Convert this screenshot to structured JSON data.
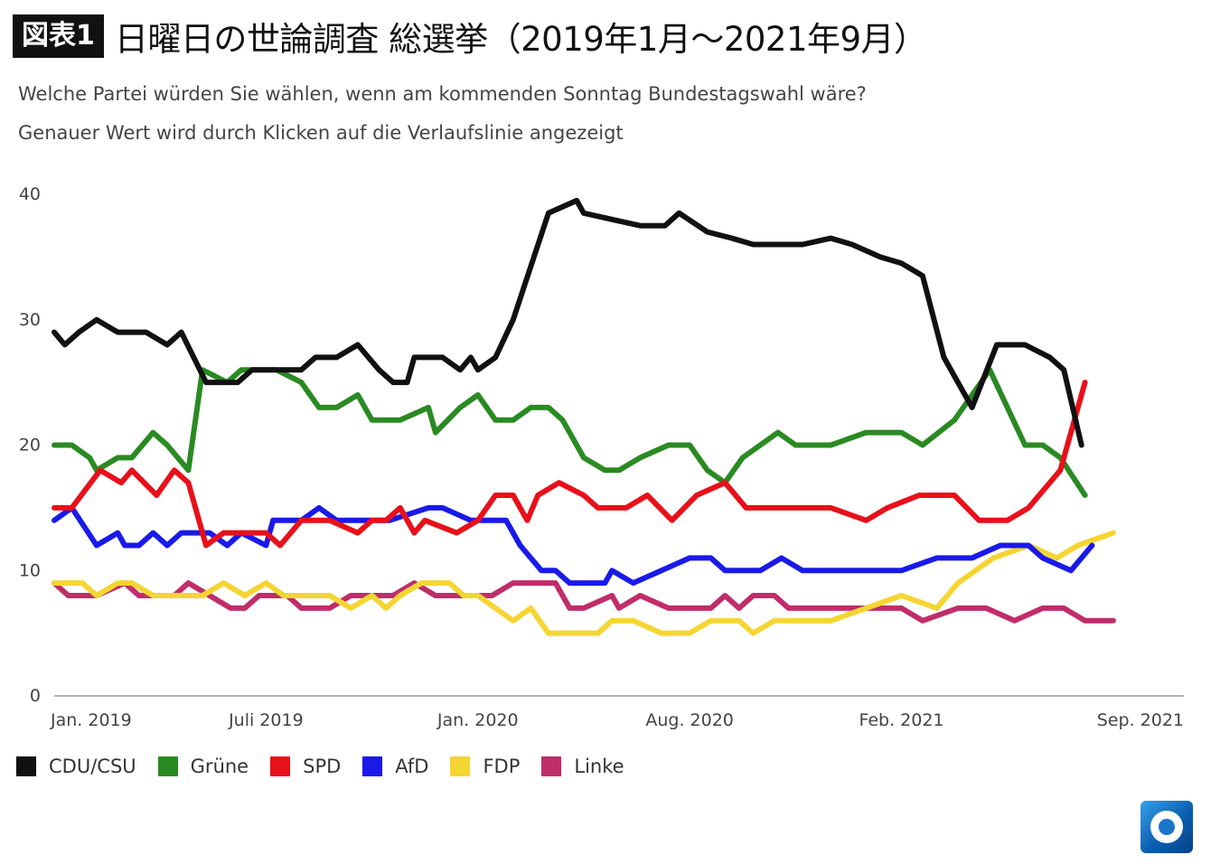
{
  "header": {
    "badge": "図表1",
    "title": "日曜日の世論調査 総選挙（2019年1月～2021年9月）"
  },
  "subtitle1": "Welche Partei würden Sie wählen, wenn am kommenden Sonntag Bundestagswahl wäre?",
  "subtitle2": "Genauer Wert wird durch Klicken auf die Verlaufslinie angezeigt",
  "chart_data": {
    "type": "line",
    "title": "日曜日の世論調査 総選挙（2019年1月～2021年9月）",
    "ylim": [
      0,
      40
    ],
    "yticks": [
      0,
      10,
      20,
      30,
      40
    ],
    "xlim": [
      0,
      32
    ],
    "xticks": [
      {
        "x": 0,
        "label": "Jan. 2019"
      },
      {
        "x": 6,
        "label": "Juli 2019"
      },
      {
        "x": 12,
        "label": "Jan. 2020"
      },
      {
        "x": 18,
        "label": "Aug. 2020"
      },
      {
        "x": 24,
        "label": "Feb. 2021"
      },
      {
        "x": 30,
        "label": "Sep. 2021"
      }
    ],
    "grid": false,
    "legend_position": "bottom-left",
    "series": [
      {
        "name": "CDU/CSU",
        "color": "#111111",
        "points": [
          [
            0,
            29
          ],
          [
            0.3,
            28
          ],
          [
            0.7,
            29
          ],
          [
            1.2,
            30
          ],
          [
            1.8,
            29
          ],
          [
            2.6,
            29
          ],
          [
            3.2,
            28
          ],
          [
            3.6,
            29
          ],
          [
            4.3,
            25
          ],
          [
            5.2,
            25
          ],
          [
            5.6,
            26
          ],
          [
            6.5,
            26
          ],
          [
            7.0,
            26
          ],
          [
            7.4,
            27
          ],
          [
            8.0,
            27
          ],
          [
            8.6,
            28
          ],
          [
            9.2,
            26
          ],
          [
            9.6,
            25
          ],
          [
            10.0,
            25
          ],
          [
            10.2,
            27
          ],
          [
            11.0,
            27
          ],
          [
            11.5,
            26
          ],
          [
            11.8,
            27
          ],
          [
            12.0,
            26
          ],
          [
            12.5,
            27
          ],
          [
            13.0,
            30
          ],
          [
            14.0,
            38.5
          ],
          [
            14.8,
            39.5
          ],
          [
            15.0,
            38.5
          ],
          [
            15.8,
            38
          ],
          [
            16.6,
            37.5
          ],
          [
            17.3,
            37.5
          ],
          [
            17.7,
            38.5
          ],
          [
            18.5,
            37
          ],
          [
            19.2,
            36.5
          ],
          [
            19.8,
            36
          ],
          [
            20.6,
            36
          ],
          [
            21.2,
            36
          ],
          [
            22.0,
            36.5
          ],
          [
            22.6,
            36
          ],
          [
            23.4,
            35
          ],
          [
            24.0,
            34.5
          ],
          [
            24.6,
            33.5
          ],
          [
            25.2,
            27
          ],
          [
            26.0,
            23
          ],
          [
            26.7,
            28
          ],
          [
            27.5,
            28
          ],
          [
            28.2,
            27
          ],
          [
            28.6,
            26
          ],
          [
            29.1,
            20
          ]
        ]
      },
      {
        "name": "Grüne",
        "color": "#2a8a22",
        "points": [
          [
            0,
            20
          ],
          [
            0.5,
            20
          ],
          [
            1.0,
            19
          ],
          [
            1.2,
            18
          ],
          [
            1.8,
            19
          ],
          [
            2.2,
            19
          ],
          [
            2.8,
            21
          ],
          [
            3.2,
            20
          ],
          [
            3.8,
            18
          ],
          [
            4.2,
            26
          ],
          [
            4.9,
            25
          ],
          [
            5.3,
            26
          ],
          [
            6.3,
            26
          ],
          [
            7.0,
            25
          ],
          [
            7.5,
            23
          ],
          [
            8.0,
            23
          ],
          [
            8.6,
            24
          ],
          [
            9.0,
            22
          ],
          [
            9.8,
            22
          ],
          [
            10.6,
            23
          ],
          [
            10.8,
            21
          ],
          [
            11.5,
            23
          ],
          [
            12.0,
            24
          ],
          [
            12.5,
            22
          ],
          [
            13.0,
            22
          ],
          [
            13.5,
            23
          ],
          [
            14.0,
            23
          ],
          [
            14.4,
            22
          ],
          [
            15.0,
            19
          ],
          [
            15.6,
            18
          ],
          [
            16.0,
            18
          ],
          [
            16.6,
            19
          ],
          [
            17.4,
            20
          ],
          [
            18.0,
            20
          ],
          [
            18.5,
            18
          ],
          [
            19.0,
            17
          ],
          [
            19.5,
            19
          ],
          [
            20.5,
            21
          ],
          [
            21.0,
            20
          ],
          [
            22.0,
            20
          ],
          [
            23.0,
            21
          ],
          [
            24.0,
            21
          ],
          [
            24.6,
            20
          ],
          [
            25.5,
            22
          ],
          [
            26.5,
            26
          ],
          [
            27.5,
            20
          ],
          [
            28.0,
            20
          ],
          [
            28.5,
            19
          ],
          [
            29.2,
            16
          ]
        ]
      },
      {
        "name": "SPD",
        "color": "#e8101a",
        "points": [
          [
            0,
            15
          ],
          [
            0.5,
            15
          ],
          [
            1.3,
            18
          ],
          [
            1.9,
            17
          ],
          [
            2.2,
            18
          ],
          [
            2.9,
            16
          ],
          [
            3.4,
            18
          ],
          [
            3.8,
            17
          ],
          [
            4.3,
            12
          ],
          [
            4.8,
            13
          ],
          [
            5.3,
            13
          ],
          [
            6.0,
            13
          ],
          [
            6.4,
            12
          ],
          [
            7.0,
            14
          ],
          [
            7.8,
            14
          ],
          [
            8.6,
            13
          ],
          [
            9.0,
            14
          ],
          [
            9.4,
            14
          ],
          [
            9.8,
            15
          ],
          [
            10.2,
            13
          ],
          [
            10.5,
            14
          ],
          [
            11.4,
            13
          ],
          [
            12.0,
            14
          ],
          [
            12.5,
            16
          ],
          [
            13.0,
            16
          ],
          [
            13.4,
            14
          ],
          [
            13.7,
            16
          ],
          [
            14.3,
            17
          ],
          [
            15.0,
            16
          ],
          [
            15.4,
            15
          ],
          [
            16.2,
            15
          ],
          [
            16.8,
            16
          ],
          [
            17.5,
            14
          ],
          [
            18.2,
            16
          ],
          [
            19.0,
            17
          ],
          [
            19.6,
            15
          ],
          [
            20.4,
            15
          ],
          [
            21.0,
            15
          ],
          [
            22.0,
            15
          ],
          [
            23.0,
            14
          ],
          [
            23.6,
            15
          ],
          [
            24.5,
            16
          ],
          [
            25.5,
            16
          ],
          [
            26.2,
            14
          ],
          [
            27.0,
            14
          ],
          [
            27.6,
            15
          ],
          [
            28.5,
            18
          ],
          [
            29.2,
            25
          ]
        ]
      },
      {
        "name": "AfD",
        "color": "#1a1ae8",
        "points": [
          [
            0,
            14
          ],
          [
            0.5,
            15
          ],
          [
            1.2,
            12
          ],
          [
            1.8,
            13
          ],
          [
            2.0,
            12
          ],
          [
            2.4,
            12
          ],
          [
            2.8,
            13
          ],
          [
            3.2,
            12
          ],
          [
            3.6,
            13
          ],
          [
            4.4,
            13
          ],
          [
            4.9,
            12
          ],
          [
            5.3,
            13
          ],
          [
            6.0,
            12
          ],
          [
            6.2,
            14
          ],
          [
            7.0,
            14
          ],
          [
            7.5,
            15
          ],
          [
            8.0,
            14
          ],
          [
            9.5,
            14
          ],
          [
            10.6,
            15
          ],
          [
            11.0,
            15
          ],
          [
            11.8,
            14
          ],
          [
            12.8,
            14
          ],
          [
            13.2,
            12
          ],
          [
            13.8,
            10
          ],
          [
            14.2,
            10
          ],
          [
            14.6,
            9
          ],
          [
            15.6,
            9
          ],
          [
            15.8,
            10
          ],
          [
            16.4,
            9
          ],
          [
            17.2,
            10
          ],
          [
            18.0,
            11
          ],
          [
            18.6,
            11
          ],
          [
            19.0,
            10
          ],
          [
            20.0,
            10
          ],
          [
            20.6,
            11
          ],
          [
            21.2,
            10
          ],
          [
            23.0,
            10
          ],
          [
            24.0,
            10
          ],
          [
            25.0,
            11
          ],
          [
            26.0,
            11
          ],
          [
            26.8,
            12
          ],
          [
            27.6,
            12
          ],
          [
            28.0,
            11
          ],
          [
            28.8,
            10
          ],
          [
            29.4,
            12
          ]
        ]
      },
      {
        "name": "FDP",
        "color": "#f5d532",
        "points": [
          [
            0,
            9
          ],
          [
            0.8,
            9
          ],
          [
            1.2,
            8
          ],
          [
            1.8,
            9
          ],
          [
            2.2,
            9
          ],
          [
            2.8,
            8
          ],
          [
            4.2,
            8
          ],
          [
            4.8,
            9
          ],
          [
            5.4,
            8
          ],
          [
            6.0,
            9
          ],
          [
            6.5,
            8
          ],
          [
            7.3,
            8
          ],
          [
            7.8,
            8
          ],
          [
            8.4,
            7
          ],
          [
            9.0,
            8
          ],
          [
            9.4,
            7
          ],
          [
            9.8,
            8
          ],
          [
            10.4,
            9
          ],
          [
            11.2,
            9
          ],
          [
            11.6,
            8
          ],
          [
            12.0,
            8
          ],
          [
            12.5,
            7
          ],
          [
            13.0,
            6
          ],
          [
            13.5,
            7
          ],
          [
            14.0,
            5
          ],
          [
            15.4,
            5
          ],
          [
            15.8,
            6
          ],
          [
            16.4,
            6
          ],
          [
            17.2,
            5
          ],
          [
            18.0,
            5
          ],
          [
            18.6,
            6
          ],
          [
            19.4,
            6
          ],
          [
            19.8,
            5
          ],
          [
            20.4,
            6
          ],
          [
            22.0,
            6
          ],
          [
            23.0,
            7
          ],
          [
            24.0,
            8
          ],
          [
            25.0,
            7
          ],
          [
            25.6,
            9
          ],
          [
            26.6,
            11
          ],
          [
            27.6,
            12
          ],
          [
            28.4,
            11
          ],
          [
            29.0,
            12
          ],
          [
            30.0,
            13
          ]
        ]
      },
      {
        "name": "Linke",
        "color": "#c02d6a",
        "points": [
          [
            0,
            9
          ],
          [
            0.4,
            8
          ],
          [
            1.2,
            8
          ],
          [
            2.0,
            9
          ],
          [
            2.4,
            8
          ],
          [
            3.4,
            8
          ],
          [
            3.8,
            9
          ],
          [
            4.4,
            8
          ],
          [
            5.0,
            7
          ],
          [
            5.4,
            7
          ],
          [
            5.8,
            8
          ],
          [
            6.6,
            8
          ],
          [
            7.0,
            7
          ],
          [
            7.8,
            7
          ],
          [
            8.4,
            8
          ],
          [
            9.6,
            8
          ],
          [
            10.2,
            9
          ],
          [
            10.8,
            8
          ],
          [
            11.6,
            8
          ],
          [
            12.4,
            8
          ],
          [
            13.0,
            9
          ],
          [
            14.2,
            9
          ],
          [
            14.6,
            7
          ],
          [
            15.0,
            7
          ],
          [
            15.8,
            8
          ],
          [
            16.0,
            7
          ],
          [
            16.6,
            8
          ],
          [
            17.4,
            7
          ],
          [
            18.6,
            7
          ],
          [
            19.0,
            8
          ],
          [
            19.4,
            7
          ],
          [
            19.8,
            8
          ],
          [
            20.4,
            8
          ],
          [
            20.8,
            7
          ],
          [
            22.0,
            7
          ],
          [
            24.0,
            7
          ],
          [
            24.6,
            6
          ],
          [
            25.6,
            7
          ],
          [
            26.4,
            7
          ],
          [
            27.2,
            6
          ],
          [
            28.0,
            7
          ],
          [
            28.6,
            7
          ],
          [
            29.2,
            6
          ],
          [
            30.0,
            6
          ]
        ]
      }
    ]
  },
  "legend": [
    {
      "label": "CDU/CSU",
      "color": "#111111"
    },
    {
      "label": "Grüne",
      "color": "#2a8a22"
    },
    {
      "label": "SPD",
      "color": "#e8101a"
    },
    {
      "label": "AfD",
      "color": "#1a1ae8"
    },
    {
      "label": "FDP",
      "color": "#f5d532"
    },
    {
      "label": "Linke",
      "color": "#c02d6a"
    }
  ],
  "logo": {
    "icon": "ard-tagesschau-logo-icon"
  }
}
